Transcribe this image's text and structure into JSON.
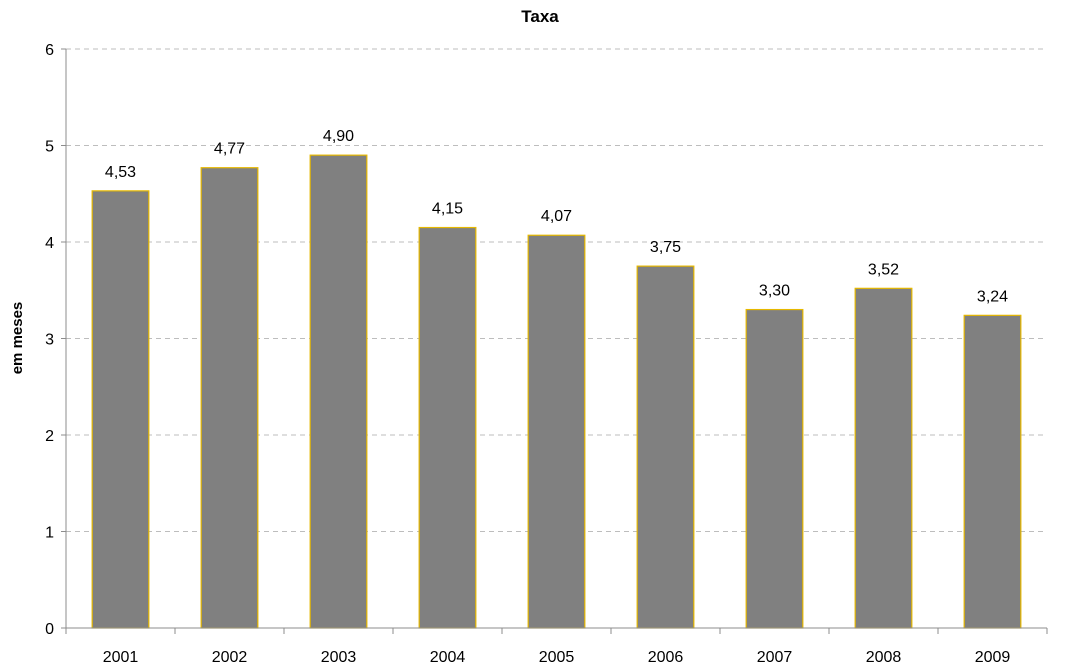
{
  "chart_data": {
    "type": "bar",
    "title": "Taxa",
    "xlabel": "",
    "ylabel": "em meses",
    "categories": [
      "2001",
      "2002",
      "2003",
      "2004",
      "2005",
      "2006",
      "2007",
      "2008",
      "2009"
    ],
    "values": [
      4.53,
      4.77,
      4.9,
      4.15,
      4.07,
      3.75,
      3.3,
      3.52,
      3.24
    ],
    "value_labels": [
      "4,53",
      "4,77",
      "4,90",
      "4,15",
      "4,07",
      "3,75",
      "3,30",
      "3,52",
      "3,24"
    ],
    "ylim": [
      0,
      6
    ],
    "yticks": [
      "0",
      "1",
      "2",
      "3",
      "4",
      "5",
      "6"
    ],
    "grid": true,
    "legend": "none",
    "colors": {
      "bar_fill": "#808080",
      "bar_border": "#e6b800"
    }
  }
}
